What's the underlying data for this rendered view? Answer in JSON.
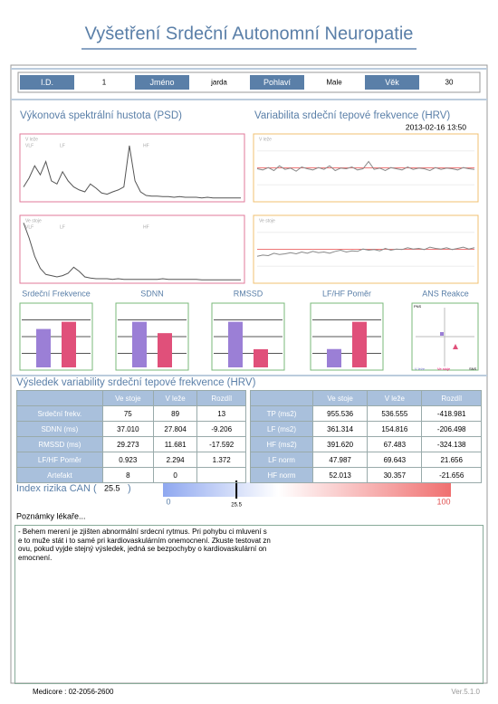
{
  "header": {
    "title": "Vyšetření Srdeční Autonomní Neuropatie"
  },
  "patient": [
    {
      "label": "I.D.",
      "value": "1"
    },
    {
      "label": "Jméno",
      "value": "jarda"
    },
    {
      "label": "Pohlaví",
      "value": "Male"
    },
    {
      "label": "Věk",
      "value": "30"
    }
  ],
  "psd": {
    "title": "Výkonová spektrální hustota (PSD)",
    "bands": [
      "VLF",
      "LF",
      "HF"
    ],
    "panels": [
      {
        "label": "V leže",
        "trace": [
          20,
          35,
          55,
          40,
          62,
          30,
          25,
          45,
          30,
          20,
          15,
          12,
          25,
          18,
          10,
          8,
          12,
          15,
          20,
          88,
          30,
          12,
          6,
          5,
          5,
          4,
          4,
          3,
          4,
          3,
          3,
          3,
          2,
          3,
          2,
          2,
          2,
          2,
          2,
          2
        ]
      },
      {
        "label": "Ve stoje",
        "trace": [
          95,
          70,
          40,
          20,
          10,
          8,
          6,
          8,
          12,
          22,
          15,
          6,
          4,
          3,
          3,
          3,
          2,
          3,
          2,
          2,
          2,
          2,
          2,
          2,
          2,
          3,
          2,
          2,
          2,
          2,
          2,
          2,
          1,
          1,
          1,
          1,
          1,
          1,
          1,
          1
        ]
      }
    ]
  },
  "hrv": {
    "title": "Variabilita srdeční tepové frekvence (HRV)",
    "date": "2013-02-16 13:50",
    "panels": [
      {
        "label": "V leže",
        "trace": [
          50,
          48,
          52,
          47,
          55,
          49,
          51,
          46,
          53,
          50,
          48,
          52,
          49,
          55,
          47,
          51,
          50,
          53,
          48,
          50,
          62,
          49,
          51,
          47,
          52,
          50,
          48,
          53,
          49,
          51,
          50,
          47,
          52,
          49,
          51,
          50,
          48,
          52,
          50,
          49
        ]
      },
      {
        "label": "Ve stoje",
        "trace": [
          40,
          42,
          41,
          45,
          43,
          44,
          46,
          44,
          47,
          45,
          48,
          46,
          47,
          45,
          48,
          50,
          47,
          49,
          48,
          52,
          50,
          51,
          49,
          53,
          50,
          52,
          51,
          54,
          52,
          53,
          51,
          55,
          53,
          52,
          54,
          51,
          53,
          55,
          52,
          54
        ]
      }
    ]
  },
  "small_charts": [
    "Srdeční Frekvence",
    "SDNN",
    "RMSSD",
    "LF/HF Poměr",
    "ANS Reakce"
  ],
  "ans_labels": {
    "pns": "PNS",
    "lying": "V leže",
    "standing": "Ve stoje",
    "sns": "SNS"
  },
  "results": {
    "title": "Výsledek variability srdeční tepové frekvence (HRV)",
    "left": {
      "headers": [
        "Ve stoje",
        "V leže",
        "Rozdíl"
      ],
      "rows": [
        {
          "label": "Srdeční frekv.",
          "values": [
            "75",
            "89",
            "13"
          ]
        },
        {
          "label": "SDNN (ms)",
          "values": [
            "37.010",
            "27.804",
            "-9.206"
          ]
        },
        {
          "label": "RMSSD (ms)",
          "values": [
            "29.273",
            "11.681",
            "-17.592"
          ]
        },
        {
          "label": "LF/HF Poměr",
          "values": [
            "0.923",
            "2.294",
            "1.372"
          ]
        },
        {
          "label": "Artefakt",
          "values": [
            "8",
            "0"
          ]
        }
      ]
    },
    "right": {
      "headers": [
        "Ve stoje",
        "V leže",
        "Rozdíl"
      ],
      "rows": [
        {
          "label": "TP (ms2)",
          "values": [
            "955.536",
            "536.555",
            "-418.981"
          ]
        },
        {
          "label": "LF (ms2)",
          "values": [
            "361.314",
            "154.816",
            "-206.498"
          ]
        },
        {
          "label": "HF (ms2)",
          "values": [
            "391.620",
            "67.483",
            "-324.138"
          ]
        },
        {
          "label": "LF norm",
          "values": [
            "47.987",
            "69.643",
            "21.656"
          ]
        },
        {
          "label": "HF norm",
          "values": [
            "52.013",
            "30.357",
            "-21.656"
          ]
        }
      ]
    }
  },
  "can_index": {
    "label": "Index rizika CAN (",
    "value": "25.5",
    "close": ")",
    "scale_min": 0,
    "scale_max": 100,
    "marker": 25.5
  },
  "notes": {
    "title": "Poznámky lékaře...",
    "lines": [
      "- Behem merení je zjišten abnormální srdecní rytmus. Pri pohybu ci mluvení s",
      "e to muže stát i to samé pri kardiovaskulárním onemocnení. Zkuste testovat zn",
      "ovu, pokud vyjde stejný výsledek, jedná se bezpochyby o kardiovaskulární on",
      "emocnení."
    ]
  },
  "footer": {
    "phone": "Medicore : 02-2056-2600",
    "version": "Ver.5.1.0"
  }
}
